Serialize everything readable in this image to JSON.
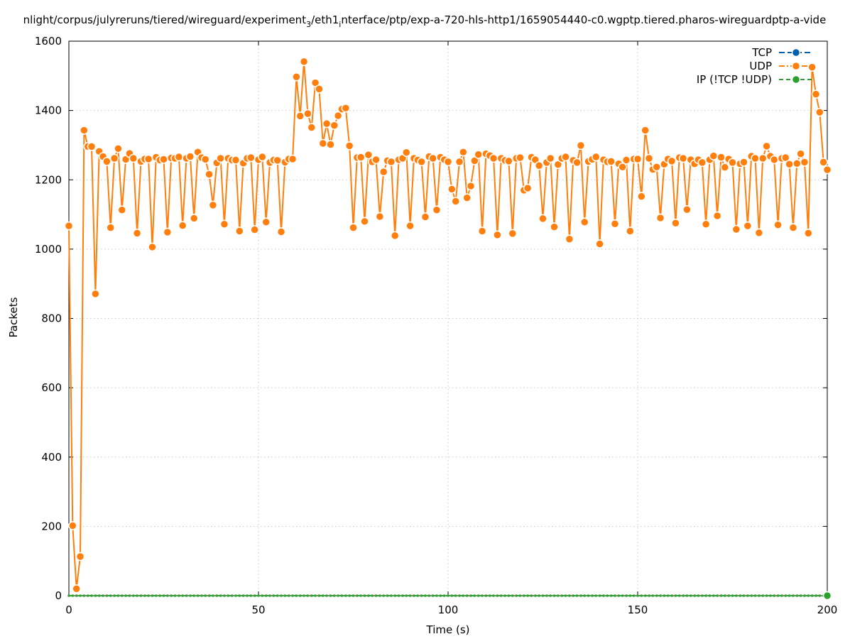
{
  "chart_data": {
    "type": "line",
    "title_parts": {
      "p1": "nlight/corpus/julyreruns/tiered/wireguard/experiment",
      "s1": "3",
      "p2": "/eth1",
      "s2": "i",
      "p3": "nterface/ptp/exp-a-720-hls-http1/1659054440-c0.wgptp.tiered.pharos-wireguardptp-a-vide"
    },
    "xlabel": "Time (s)",
    "ylabel": "Packets",
    "xlim": [
      0,
      200
    ],
    "ylim": [
      0,
      1600
    ],
    "x_ticks": [
      0,
      50,
      100,
      150,
      200
    ],
    "y_ticks": [
      0,
      200,
      400,
      600,
      800,
      1000,
      1200,
      1400,
      1600
    ],
    "grid": true,
    "legend_position": "top-right",
    "legend": [
      "TCP",
      "UDP",
      "IP (!TCP  !UDP)"
    ],
    "colors": {
      "TCP": "#0060ad",
      "UDP": "#ff7f0e",
      "IP": "#2ca02c"
    },
    "series": [
      {
        "name": "TCP",
        "values": []
      },
      {
        "name": "UDP",
        "values": [
          1067,
          202,
          20,
          113,
          1343,
          1296,
          1296,
          871,
          1282,
          1267,
          1253,
          1062,
          1262,
          1290,
          1113,
          1259,
          1276,
          1262,
          1046,
          1253,
          1260,
          1260,
          1006,
          1265,
          1257,
          1259,
          1049,
          1263,
          1262,
          1266,
          1068,
          1262,
          1267,
          1089,
          1280,
          1264,
          1259,
          1216,
          1127,
          1249,
          1262,
          1072,
          1262,
          1257,
          1257,
          1052,
          1248,
          1262,
          1264,
          1056,
          1258,
          1266,
          1078,
          1250,
          1257,
          1256,
          1050,
          1251,
          1260,
          1260,
          1497,
          1384,
          1541,
          1391,
          1351,
          1480,
          1462,
          1305,
          1362,
          1302,
          1357,
          1385,
          1404,
          1407,
          1298,
          1062,
          1264,
          1265,
          1080,
          1272,
          1252,
          1258,
          1094,
          1223,
          1255,
          1252,
          1039,
          1258,
          1262,
          1279,
          1067,
          1262,
          1257,
          1252,
          1093,
          1267,
          1262,
          1113,
          1265,
          1258,
          1252,
          1173,
          1138,
          1252,
          1280,
          1148,
          1182,
          1255,
          1273,
          1052,
          1275,
          1270,
          1262,
          1041,
          1262,
          1256,
          1254,
          1045,
          1262,
          1264,
          1170,
          1176,
          1265,
          1258,
          1241,
          1088,
          1250,
          1262,
          1064,
          1244,
          1262,
          1266,
          1029,
          1256,
          1250,
          1299,
          1078,
          1253,
          1259,
          1266,
          1015,
          1258,
          1252,
          1253,
          1073,
          1246,
          1237,
          1257,
          1052,
          1260,
          1260,
          1152,
          1343,
          1262,
          1230,
          1237,
          1090,
          1245,
          1260,
          1254,
          1075,
          1264,
          1262,
          1114,
          1258,
          1246,
          1258,
          1250,
          1072,
          1258,
          1269,
          1096,
          1265,
          1236,
          1260,
          1250,
          1057,
          1246,
          1251,
          1067,
          1268,
          1262,
          1047,
          1262,
          1297,
          1268,
          1258,
          1070,
          1262,
          1264,
          1245,
          1062,
          1247,
          1275,
          1251,
          1046,
          1525,
          1447,
          1395,
          1251,
          1229
        ]
      },
      {
        "name": "IP (!TCP  !UDP)",
        "values": [
          0,
          0,
          0,
          0,
          0,
          0,
          0,
          0,
          0,
          0,
          0,
          0,
          0,
          0,
          0,
          0,
          0,
          0,
          0,
          0,
          0,
          0,
          0,
          0,
          0,
          0,
          0,
          0,
          0,
          0,
          0,
          0,
          0,
          0,
          0,
          0,
          0,
          0,
          0,
          0,
          0,
          0,
          0,
          0,
          0,
          0,
          0,
          0,
          0,
          0,
          0,
          0,
          0,
          0,
          0,
          0,
          0,
          0,
          0,
          0,
          0,
          0,
          0,
          0,
          0,
          0,
          0,
          0,
          0,
          0,
          0,
          0,
          0,
          0,
          0,
          0,
          0,
          0,
          0,
          0,
          0,
          0,
          0,
          0,
          0,
          0,
          0,
          0,
          0,
          0,
          0,
          0,
          0,
          0,
          0,
          0,
          0,
          0,
          0,
          0,
          0,
          0,
          0,
          0,
          0,
          0,
          0,
          0,
          0,
          0,
          0,
          0,
          0,
          0,
          0,
          0,
          0,
          0,
          0,
          0,
          0,
          0,
          0,
          0,
          0,
          0,
          0,
          0,
          0,
          0,
          0,
          0,
          0,
          0,
          0,
          0,
          0,
          0,
          0,
          0,
          0,
          0,
          0,
          0,
          0,
          0,
          0,
          0,
          0,
          0,
          0,
          0,
          0,
          0,
          0,
          0,
          0,
          0,
          0,
          0,
          0,
          0,
          0,
          0,
          0,
          0,
          0,
          0,
          0,
          0,
          0,
          0,
          0,
          0,
          0,
          0,
          0,
          0,
          0,
          0,
          0,
          0,
          0,
          0,
          0,
          0,
          0,
          0,
          0,
          0,
          0,
          0,
          0,
          0,
          0,
          0,
          0,
          0,
          0,
          0,
          0
        ]
      }
    ]
  }
}
